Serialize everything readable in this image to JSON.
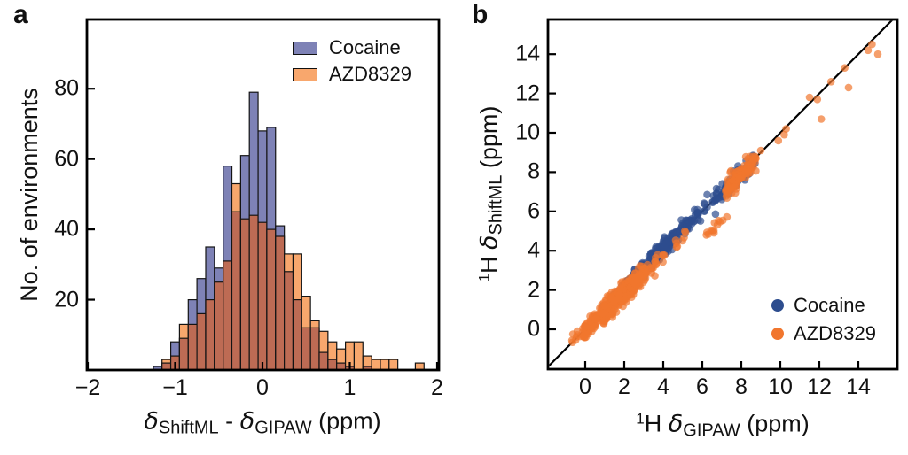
{
  "panels": {
    "a_label": "a",
    "b_label": "b"
  },
  "colors": {
    "hist_blue": "#7e82b6",
    "hist_orange": "#f8a76d",
    "hist_overlap": "#bd6b54",
    "scatter_blue": "#2d4d8e",
    "scatter_orange": "#f1762e",
    "axis": "#000000",
    "identity_line": "#000000"
  },
  "chart_data": [
    {
      "panel": "a",
      "type": "histogram",
      "ylabel": "No. of environments",
      "xlabel_parts": {
        "delta1": "δ",
        "sub1": "ShiftML",
        "dash": " - ",
        "delta2": "δ",
        "sub2": "GIPAW",
        "units": " (ppm)"
      },
      "x_ticks": [
        -2,
        -1,
        0,
        1,
        2
      ],
      "y_ticks": [
        20,
        40,
        60,
        80
      ],
      "x_range": [
        -2.01,
        2.02
      ],
      "y_range": [
        0,
        99.7
      ],
      "grid": false,
      "legend_position": "top-right-inside",
      "bin_start": -1.25,
      "bin_width": 0.1,
      "series": [
        {
          "name": "Cocaine",
          "color_key": "hist_blue",
          "counts": [
            1,
            2,
            8,
            9,
            20,
            26,
            35,
            29,
            58,
            45,
            61,
            79,
            68,
            69,
            41,
            28,
            20,
            12,
            12,
            5,
            3,
            2,
            1,
            0,
            1,
            0,
            0,
            0,
            0,
            0,
            0
          ]
        },
        {
          "name": "AZD8329",
          "color_key": "hist_orange",
          "counts": [
            0,
            3,
            4,
            13,
            13,
            16,
            20,
            25,
            31,
            53,
            43,
            44,
            42,
            40,
            38,
            33,
            33,
            21,
            14,
            11,
            8,
            6,
            8,
            8,
            4,
            3,
            3,
            3,
            0,
            0,
            2
          ]
        }
      ],
      "overlap_color_key": "hist_overlap"
    },
    {
      "panel": "b",
      "type": "scatter",
      "xlabel_parts": {
        "sup": "1",
        "element": "H ",
        "delta": "δ",
        "sub": "GIPAW",
        "units": " (ppm)"
      },
      "ylabel_parts": {
        "sup": "1",
        "element": "H ",
        "delta": "δ",
        "sub": "ShiftML",
        "units": " (ppm)"
      },
      "x_ticks": [
        0,
        2,
        4,
        6,
        8,
        10,
        12,
        14
      ],
      "y_ticks": [
        0,
        2,
        4,
        6,
        8,
        10,
        12,
        14
      ],
      "x_range": [
        -1.9,
        16.0
      ],
      "y_range": [
        -2.0,
        15.8
      ],
      "grid": false,
      "identity_line": true,
      "legend_position": "bottom-right-inside",
      "point_radius": 4.3,
      "point_opacity": 0.7,
      "series": [
        {
          "name": "Cocaine",
          "color_key": "scatter_blue",
          "clusters": [
            {
              "x_from": 0.9,
              "x_to": 2.0,
              "n": 25,
              "spread": 0.2,
              "offset": 0.05
            },
            {
              "x_from": 2.0,
              "x_to": 3.3,
              "n": 110,
              "spread": 0.2,
              "offset": 0.05
            },
            {
              "x_from": 3.3,
              "x_to": 4.6,
              "n": 120,
              "spread": 0.22,
              "offset": 0.12
            },
            {
              "x_from": 4.6,
              "x_to": 5.8,
              "n": 55,
              "spread": 0.22,
              "offset": 0.08
            },
            {
              "x_from": 5.8,
              "x_to": 6.6,
              "n": 10,
              "spread": 0.25,
              "offset": 0.0
            },
            {
              "x_from": 6.6,
              "x_to": 8.7,
              "n": 85,
              "spread": 0.28,
              "offset": -0.08
            }
          ],
          "points": []
        },
        {
          "name": "AZD8329",
          "color_key": "scatter_orange",
          "clusters": [
            {
              "x_from": -0.7,
              "x_to": -0.1,
              "n": 10,
              "spread": 0.15,
              "offset": 0.1
            },
            {
              "x_from": -0.1,
              "x_to": 0.9,
              "n": 70,
              "spread": 0.22,
              "offset": -0.05
            },
            {
              "x_from": 0.9,
              "x_to": 2.3,
              "n": 210,
              "spread": 0.27,
              "offset": -0.12
            },
            {
              "x_from": 2.3,
              "x_to": 3.1,
              "n": 80,
              "spread": 0.25,
              "offset": -0.15
            },
            {
              "x_from": 3.1,
              "x_to": 4.1,
              "n": 18,
              "spread": 0.22,
              "offset": -0.25
            },
            {
              "x_from": 4.1,
              "x_to": 5.2,
              "n": 8,
              "spread": 0.2,
              "offset": -0.35
            },
            {
              "x_from": 6.2,
              "x_to": 7.3,
              "n": 13,
              "spread": 0.15,
              "offset": -1.45
            },
            {
              "x_from": 7.2,
              "x_to": 8.8,
              "n": 95,
              "spread": 0.26,
              "offset": -0.08
            }
          ],
          "points": [
            [
              9.0,
              9.1
            ],
            [
              9.9,
              9.6
            ],
            [
              10.2,
              9.9
            ],
            [
              10.3,
              10.2
            ],
            [
              11.5,
              11.8
            ],
            [
              11.9,
              11.7
            ],
            [
              12.1,
              10.7
            ],
            [
              12.6,
              12.6
            ],
            [
              13.3,
              13.3
            ],
            [
              13.5,
              12.3
            ],
            [
              14.5,
              14.2
            ],
            [
              14.7,
              14.5
            ],
            [
              15.0,
              14.0
            ]
          ]
        }
      ]
    }
  ]
}
